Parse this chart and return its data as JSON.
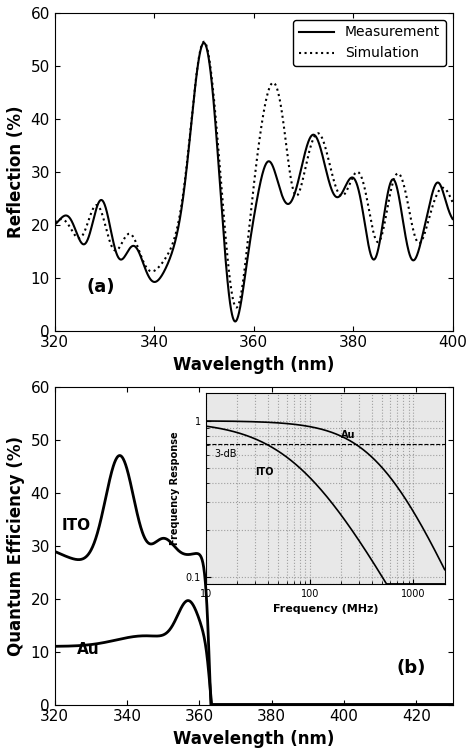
{
  "panel_a": {
    "xlabel": "Wavelength (nm)",
    "ylabel": "Reflection (%)",
    "label": "(a)",
    "xlim": [
      320,
      400
    ],
    "ylim": [
      0,
      60
    ],
    "xticks": [
      320,
      340,
      360,
      380,
      400
    ],
    "yticks": [
      0,
      10,
      20,
      30,
      40,
      50,
      60
    ],
    "legend": [
      "Measurement",
      "Simulation"
    ]
  },
  "panel_b": {
    "xlabel": "Wavelength (nm)",
    "ylabel": "Quantum Efficiency (%)",
    "label": "(b)",
    "xlim": [
      320,
      430
    ],
    "ylim": [
      0,
      60
    ],
    "xticks": [
      320,
      340,
      360,
      380,
      400,
      420
    ],
    "yticks": [
      0,
      10,
      20,
      30,
      40,
      50,
      60
    ],
    "ito_label": "ITO",
    "au_label": "Au"
  },
  "inset": {
    "xlabel": "Frequency (MHz)",
    "ylabel": "Frequency Response",
    "xlim": [
      10,
      2000
    ],
    "ylim": [
      0.09,
      1.5
    ],
    "ito_label": "ITO",
    "au_label": "Au",
    "3db_label": "3-dB"
  },
  "bg_color": "#ffffff",
  "line_color": "#000000"
}
